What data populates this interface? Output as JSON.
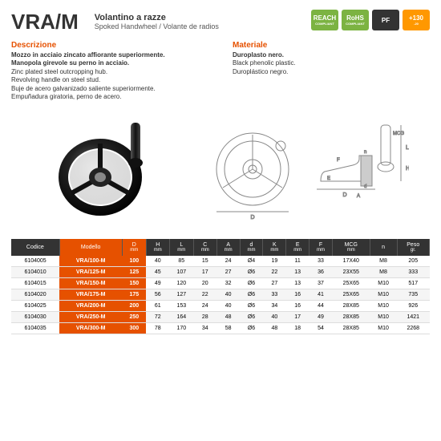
{
  "header": {
    "code": "VRA/M",
    "subtitle_it": "Volantino a razze",
    "subtitle_en": "Spoked Handwheel / Volante de radios"
  },
  "badges": [
    {
      "label": "REACH",
      "sub": "COMPLIANT",
      "bg": "#7cb342"
    },
    {
      "label": "RoHS",
      "sub": "COMPLIANT",
      "bg": "#7cb342"
    },
    {
      "label": "PF",
      "sub": "",
      "bg": "#333333"
    },
    {
      "label": "+130",
      "sub": "-20",
      "bg": "#ff9800"
    }
  ],
  "description": {
    "title": "Descrizione",
    "it_line1": "Mozzo in acciaio zincato affiorante superiormente.",
    "it_line2": "Manopola girevole su perno in acciaio.",
    "en_line1": "Zinc plated steel outcropping hub.",
    "en_line2": "Revolving handle on steel stud.",
    "es_line1": "Buje de acero galvanizado saliente superiormente.",
    "es_line2": "Empuñadura giratoria, perno de acero."
  },
  "material": {
    "title": "Materiale",
    "it": "Duroplasto nero.",
    "en": "Black phenolic plastic.",
    "es": "Duroplástico negro."
  },
  "table": {
    "columns": [
      {
        "label": "Codice",
        "unit": "",
        "cls": ""
      },
      {
        "label": "Modello",
        "unit": "",
        "cls": "orange"
      },
      {
        "label": "D",
        "unit": "mm",
        "cls": "orange"
      },
      {
        "label": "H",
        "unit": "mm",
        "cls": ""
      },
      {
        "label": "L",
        "unit": "mm",
        "cls": ""
      },
      {
        "label": "C",
        "unit": "mm",
        "cls": ""
      },
      {
        "label": "A",
        "unit": "mm",
        "cls": ""
      },
      {
        "label": "d",
        "unit": "mm",
        "cls": ""
      },
      {
        "label": "K",
        "unit": "mm",
        "cls": ""
      },
      {
        "label": "E",
        "unit": "mm",
        "cls": ""
      },
      {
        "label": "F",
        "unit": "mm",
        "cls": ""
      },
      {
        "label": "MCG",
        "unit": "mm",
        "cls": ""
      },
      {
        "label": "n",
        "unit": "",
        "cls": ""
      },
      {
        "label": "Peso",
        "unit": "gr.",
        "cls": ""
      }
    ],
    "rows": [
      [
        "6104005",
        "VRA/100-M",
        "100",
        "40",
        "85",
        "15",
        "24",
        "Ø4",
        "19",
        "11",
        "33",
        "17X40",
        "M8",
        "205"
      ],
      [
        "6104010",
        "VRA/125-M",
        "125",
        "45",
        "107",
        "17",
        "27",
        "Ø6",
        "22",
        "13",
        "36",
        "23X55",
        "M8",
        "333"
      ],
      [
        "6104015",
        "VRA/150-M",
        "150",
        "49",
        "120",
        "20",
        "32",
        "Ø6",
        "27",
        "13",
        "37",
        "25X65",
        "M10",
        "517"
      ],
      [
        "6104020",
        "VRA/175-M",
        "175",
        "56",
        "127",
        "22",
        "40",
        "Ø6",
        "33",
        "16",
        "41",
        "25X65",
        "M10",
        "735"
      ],
      [
        "6104025",
        "VRA/200-M",
        "200",
        "61",
        "153",
        "24",
        "40",
        "Ø6",
        "34",
        "16",
        "44",
        "28X85",
        "M10",
        "926"
      ],
      [
        "6104030",
        "VRA/250-M",
        "250",
        "72",
        "164",
        "28",
        "48",
        "Ø6",
        "40",
        "17",
        "49",
        "28X85",
        "M10",
        "1421"
      ],
      [
        "6104035",
        "VRA/300-M",
        "300",
        "78",
        "170",
        "34",
        "58",
        "Ø6",
        "48",
        "18",
        "54",
        "28X85",
        "M10",
        "2268"
      ]
    ]
  },
  "colors": {
    "orange": "#e65100",
    "dark": "#333333",
    "green": "#7cb342",
    "amber": "#ff9800"
  }
}
